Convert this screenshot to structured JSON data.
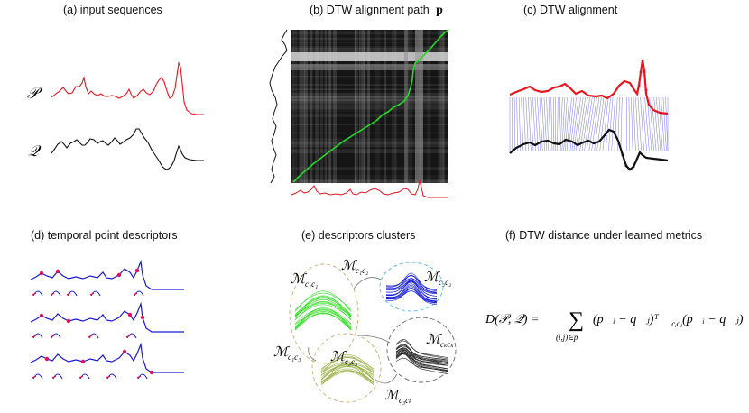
{
  "panels": {
    "a": {
      "title": "(a)  input sequences",
      "label_p": "𝒫",
      "label_q": "𝒬"
    },
    "b": {
      "title": "(b)  DTW alignment path",
      "title_symbol": "p"
    },
    "c": {
      "title": "(c)  DTW alignment"
    },
    "d": {
      "title": "(d)  temporal point descriptors"
    },
    "e": {
      "title": "(e)  descriptors clusters",
      "clusters": [
        {
          "label": "ℳ",
          "sub": "c₁c₁"
        },
        {
          "label": "ℳ",
          "sub": "c₂c₂"
        },
        {
          "label": "ℳ",
          "sub": "c₃c₃"
        },
        {
          "label": "ℳ",
          "sub": "cₖcₖ"
        }
      ],
      "links": [
        {
          "label": "ℳ",
          "sub": "c₁c₂"
        },
        {
          "label": "ℳ",
          "sub": "c₁c₃"
        },
        {
          "label": "ℳ",
          "sub": "c₃cₖ"
        }
      ]
    },
    "f": {
      "title": "(f)  DTW distance under learned metrics",
      "formula_lhs": "D(𝒫, 𝒬) =",
      "formula_sum": "∑",
      "formula_sum_sub": "(i,j)∈p",
      "formula_rhs": "(p⃗ᵢ − q⃗ⱼ)ᵀ ℳ",
      "formula_rhs_sub": "cᵢcⱼ",
      "formula_rhs_tail": "(p⃗ᵢ − q⃗ⱼ)"
    }
  },
  "colors": {
    "sequence_p": "#e8141e",
    "sequence_q": "#111111",
    "path": "#22dd22",
    "links": "#4a4aee",
    "descriptor": "#1a1ad8",
    "points": "#e01060",
    "cluster_green": "#33dd22",
    "cluster_blue": "#1a22dd",
    "cluster_olive": "#99b048",
    "cluster_black": "#222222"
  }
}
